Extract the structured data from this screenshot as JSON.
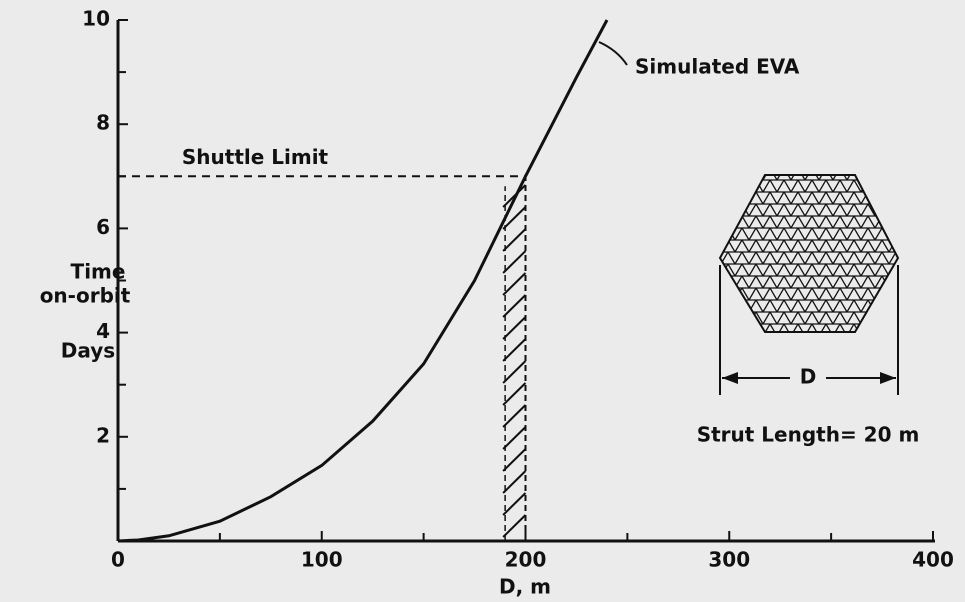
{
  "chart_data": {
    "type": "line",
    "x_label": "D, m",
    "y_label": [
      "Time",
      "on-orbit",
      "Days"
    ],
    "xlim": [
      0,
      400
    ],
    "ylim": [
      0,
      10
    ],
    "xticks": [
      0,
      100,
      200,
      300,
      400
    ],
    "yticks": [
      2,
      4,
      6,
      8,
      10
    ],
    "x_minor_ticks": [
      50,
      150,
      250,
      350
    ],
    "y_minor_ticks": [
      1,
      3,
      5,
      7,
      9
    ],
    "series": [
      {
        "name": "Simulated EVA",
        "color": "#111111",
        "x": [
          0,
          10,
          25,
          50,
          75,
          100,
          125,
          150,
          175,
          200,
          225,
          240
        ],
        "values": [
          0,
          0.02,
          0.1,
          0.38,
          0.85,
          1.45,
          2.3,
          3.4,
          5.0,
          7,
          8.9,
          10
        ]
      }
    ],
    "shuttle_limit": {
      "label": "Shuttle Limit",
      "y": 7,
      "x": 200
    },
    "hatch_band": [
      190,
      200
    ],
    "inset": {
      "dimension": "D",
      "caption": "Strut Length= 20 m"
    }
  }
}
